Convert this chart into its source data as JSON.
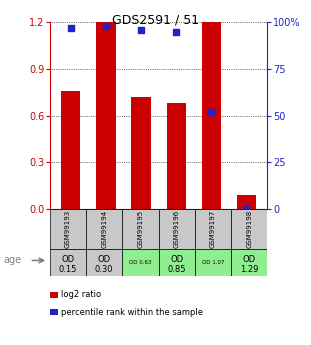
{
  "title": "GDS2591 / 51",
  "samples": [
    "GSM99193",
    "GSM99194",
    "GSM99195",
    "GSM99196",
    "GSM99197",
    "GSM99198"
  ],
  "log2_ratio": [
    0.76,
    1.2,
    0.72,
    0.68,
    1.2,
    0.09
  ],
  "percentile_rank": [
    97,
    98,
    96,
    95,
    52,
    0
  ],
  "od_labels_line1": [
    "OD",
    "OD",
    "OD 0.63",
    "OD",
    "OD 1.07",
    "OD"
  ],
  "od_labels_line2": [
    "0.15",
    "0.30",
    "",
    "0.85",
    "",
    "1.29"
  ],
  "od_large": [
    true,
    true,
    false,
    true,
    false,
    true
  ],
  "cell_bg_colors_od": [
    "#c8c8c8",
    "#c8c8c8",
    "#90ee90",
    "#90ee90",
    "#90ee90",
    "#90ee90"
  ],
  "cell_bg_colors_gsm": [
    "#c8c8c8",
    "#c8c8c8",
    "#c8c8c8",
    "#c8c8c8",
    "#c8c8c8",
    "#c8c8c8"
  ],
  "bar_color": "#cc0000",
  "dot_color": "#2222cc",
  "ylim_left": [
    0,
    1.2
  ],
  "ylim_right": [
    0,
    100
  ],
  "yticks_left": [
    0,
    0.3,
    0.6,
    0.9,
    1.2
  ],
  "yticks_right": [
    0,
    25,
    50,
    75,
    100
  ],
  "ytick_labels_right": [
    "0",
    "25",
    "50",
    "75",
    "100%"
  ],
  "age_label": "age",
  "legend_log2": "log2 ratio",
  "legend_pct": "percentile rank within the sample"
}
